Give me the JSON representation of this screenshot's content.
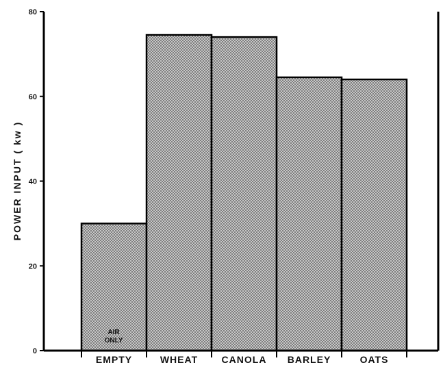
{
  "chart_data": {
    "type": "bar",
    "categories": [
      "EMPTY",
      "WHEAT",
      "CANOLA",
      "BARLEY",
      "OATS"
    ],
    "values": [
      30,
      74.5,
      74,
      64.5,
      64
    ],
    "ylabel": "POWER INPUT ( kw )",
    "xlabel": "",
    "title": "",
    "ylim": [
      0,
      80
    ],
    "yticks": [
      0,
      20,
      40,
      60,
      80
    ],
    "annotation": {
      "category": "EMPTY",
      "lines": [
        "AIR",
        "ONLY"
      ]
    },
    "bar_fill": "#b3b3b3",
    "bar_stroke": "#000000",
    "grid": false,
    "legend": "none"
  }
}
